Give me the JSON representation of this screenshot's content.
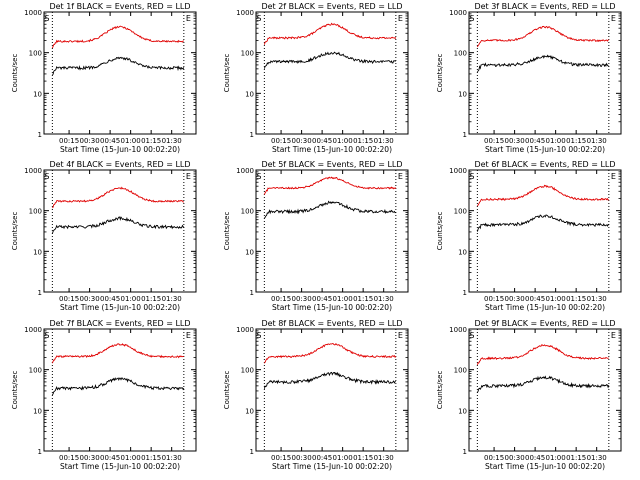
{
  "chart_data": [
    {
      "type": "line",
      "title": "Det 1f BLACK = Events, RED = LLD",
      "xlabel": "Start Time (15-Jun-10 00:02:20)",
      "ylabel": "Counts/sec",
      "yscale": "log",
      "ylim": [
        1,
        1000
      ],
      "xlim": [
        0,
        100
      ],
      "x_ticks": [
        "00:15",
        "00:30",
        "00:45",
        "01:00",
        "01:15",
        "01:30"
      ],
      "y_ticks": [
        "1",
        "10",
        "100",
        "1000"
      ],
      "markers": {
        "left": "S",
        "right": "E"
      },
      "series": [
        {
          "color": "#e00000",
          "base": 190,
          "peak": 430
        },
        {
          "color": "#000000",
          "base": 42,
          "peak": 75
        }
      ]
    },
    {
      "type": "line",
      "title": "Det 2f BLACK = Events, RED = LLD",
      "xlabel": "Start Time (15-Jun-10 00:02:20)",
      "ylabel": "Counts/sec",
      "yscale": "log",
      "ylim": [
        1,
        1000
      ],
      "xlim": [
        0,
        100
      ],
      "x_ticks": [
        "00:15",
        "00:30",
        "00:45",
        "01:00",
        "01:15",
        "01:30"
      ],
      "y_ticks": [
        "1",
        "10",
        "100",
        "1000"
      ],
      "markers": {
        "left": "S",
        "right": "E"
      },
      "series": [
        {
          "color": "#e00000",
          "base": 230,
          "peak": 500
        },
        {
          "color": "#000000",
          "base": 60,
          "peak": 100
        }
      ]
    },
    {
      "type": "line",
      "title": "Det 3f BLACK = Events, RED = LLD",
      "xlabel": "Start Time (15-Jun-10 00:02:20)",
      "ylabel": "Counts/sec",
      "yscale": "log",
      "ylim": [
        1,
        1000
      ],
      "xlim": [
        0,
        100
      ],
      "x_ticks": [
        "00:15",
        "00:30",
        "00:45",
        "01:00",
        "01:15",
        "01:30"
      ],
      "y_ticks": [
        "1",
        "10",
        "100",
        "1000"
      ],
      "markers": {
        "left": "S",
        "right": "E"
      },
      "series": [
        {
          "color": "#e00000",
          "base": 200,
          "peak": 430
        },
        {
          "color": "#000000",
          "base": 50,
          "peak": 80
        }
      ]
    },
    {
      "type": "line",
      "title": "Det 4f BLACK = Events, RED = LLD",
      "xlabel": "Start Time (15-Jun-10 00:02:20)",
      "ylabel": "Counts/sec",
      "yscale": "log",
      "ylim": [
        1,
        1000
      ],
      "xlim": [
        0,
        100
      ],
      "x_ticks": [
        "00:15",
        "00:30",
        "00:45",
        "01:00",
        "01:15",
        "01:30"
      ],
      "y_ticks": [
        "1",
        "10",
        "100",
        "1000"
      ],
      "markers": {
        "left": "S",
        "right": "E"
      },
      "series": [
        {
          "color": "#e00000",
          "base": 170,
          "peak": 360
        },
        {
          "color": "#000000",
          "base": 40,
          "peak": 65
        }
      ]
    },
    {
      "type": "line",
      "title": "Det 5f BLACK = Events, RED = LLD",
      "xlabel": "Start Time (15-Jun-10 00:02:20)",
      "ylabel": "Counts/sec",
      "yscale": "log",
      "ylim": [
        1,
        1000
      ],
      "xlim": [
        0,
        100
      ],
      "x_ticks": [
        "00:15",
        "00:30",
        "00:45",
        "01:00",
        "01:15",
        "01:30"
      ],
      "y_ticks": [
        "1",
        "10",
        "100",
        "1000"
      ],
      "markers": {
        "left": "S",
        "right": "E"
      },
      "series": [
        {
          "color": "#e00000",
          "base": 360,
          "peak": 650
        },
        {
          "color": "#000000",
          "base": 95,
          "peak": 160
        }
      ]
    },
    {
      "type": "line",
      "title": "Det 6f BLACK = Events, RED = LLD",
      "xlabel": "Start Time (15-Jun-10 00:02:20)",
      "ylabel": "Counts/sec",
      "yscale": "log",
      "ylim": [
        1,
        1000
      ],
      "xlim": [
        0,
        100
      ],
      "x_ticks": [
        "00:15",
        "00:30",
        "00:45",
        "01:00",
        "01:15",
        "01:30"
      ],
      "y_ticks": [
        "1",
        "10",
        "100",
        "1000"
      ],
      "markers": {
        "left": "S",
        "right": "E"
      },
      "series": [
        {
          "color": "#e00000",
          "base": 190,
          "peak": 400
        },
        {
          "color": "#000000",
          "base": 45,
          "peak": 75
        }
      ]
    },
    {
      "type": "line",
      "title": "Det 7f BLACK = Events, RED = LLD",
      "xlabel": "Start Time (15-Jun-10 00:02:20)",
      "ylabel": "Counts/sec",
      "yscale": "log",
      "ylim": [
        1,
        1000
      ],
      "xlim": [
        0,
        100
      ],
      "x_ticks": [
        "00:15",
        "00:30",
        "00:45",
        "01:00",
        "01:15",
        "01:30"
      ],
      "y_ticks": [
        "1",
        "10",
        "100",
        "1000"
      ],
      "markers": {
        "left": "S",
        "right": "E"
      },
      "series": [
        {
          "color": "#e00000",
          "base": 210,
          "peak": 420
        },
        {
          "color": "#000000",
          "base": 35,
          "peak": 60
        }
      ]
    },
    {
      "type": "line",
      "title": "Det 8f BLACK = Events, RED = LLD",
      "xlabel": "Start Time (15-Jun-10 00:02:20)",
      "ylabel": "Counts/sec",
      "yscale": "log",
      "ylim": [
        1,
        1000
      ],
      "xlim": [
        0,
        100
      ],
      "x_ticks": [
        "00:15",
        "00:30",
        "00:45",
        "01:00",
        "01:15",
        "01:30"
      ],
      "y_ticks": [
        "1",
        "10",
        "100",
        "1000"
      ],
      "markers": {
        "left": "S",
        "right": "E"
      },
      "series": [
        {
          "color": "#e00000",
          "base": 210,
          "peak": 430
        },
        {
          "color": "#000000",
          "base": 50,
          "peak": 80
        }
      ]
    },
    {
      "type": "line",
      "title": "Det 9f BLACK = Events, RED = LLD",
      "xlabel": "Start Time (15-Jun-10 00:02:20)",
      "ylabel": "Counts/sec",
      "yscale": "log",
      "ylim": [
        1,
        1000
      ],
      "xlim": [
        0,
        100
      ],
      "x_ticks": [
        "00:15",
        "00:30",
        "00:45",
        "01:00",
        "01:15",
        "01:30"
      ],
      "y_ticks": [
        "1",
        "10",
        "100",
        "1000"
      ],
      "markers": {
        "left": "S",
        "right": "E"
      },
      "series": [
        {
          "color": "#e00000",
          "base": 190,
          "peak": 400
        },
        {
          "color": "#000000",
          "base": 40,
          "peak": 65
        }
      ]
    }
  ]
}
